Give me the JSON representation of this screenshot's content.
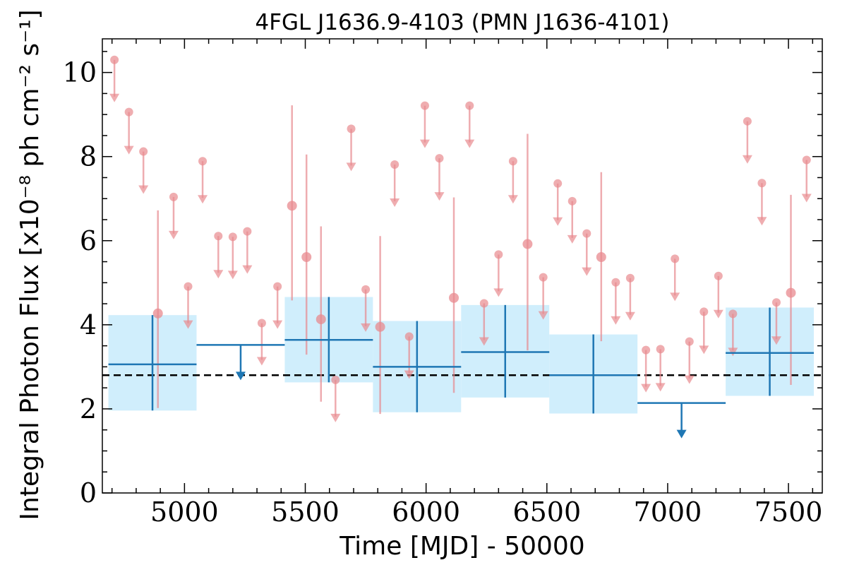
{
  "chart_data": {
    "type": "scatter",
    "title": "4FGL J1636.9-4103 (PMN J1636-4101)",
    "xlabel": "Time [MJD] - 50000",
    "ylabel": "Integral Photon Flux [x10⁻⁸ ph cm⁻² s⁻¹]",
    "xlim": [
      4660,
      7640
    ],
    "ylim": [
      0,
      10.8
    ],
    "xticks": [
      5000,
      5500,
      6000,
      6500,
      7000,
      7500
    ],
    "xtick_labels": [
      "5000",
      "5500",
      "6000",
      "6500",
      "7000",
      "7500"
    ],
    "yticks": [
      0,
      2,
      4,
      6,
      8,
      10
    ],
    "ytick_labels": [
      "0",
      "2",
      "4",
      "6",
      "8",
      "10"
    ],
    "grid": false,
    "mean_flux": 2.8,
    "colors": {
      "short_bins": "#e88a8f",
      "long_bins": "#1f77b4",
      "long_bin_band": "#d0eefc",
      "mean_line": "#000000"
    },
    "short_bin_detections": [
      {
        "x": 4890,
        "y": 4.27,
        "lo": 2.02,
        "hi": 6.72
      },
      {
        "x": 5445,
        "y": 6.83,
        "lo": 4.58,
        "hi": 9.22
      },
      {
        "x": 5505,
        "y": 5.61,
        "lo": 3.29,
        "hi": 8.05
      },
      {
        "x": 5565,
        "y": 4.13,
        "lo": 2.17,
        "hi": 6.34
      },
      {
        "x": 5810,
        "y": 3.95,
        "lo": 1.88,
        "hi": 6.11
      },
      {
        "x": 6115,
        "y": 4.64,
        "lo": 2.38,
        "hi": 7.03
      },
      {
        "x": 6420,
        "y": 5.92,
        "lo": 3.39,
        "hi": 8.54
      },
      {
        "x": 6725,
        "y": 5.61,
        "lo": 3.61,
        "hi": 7.63
      },
      {
        "x": 7510,
        "y": 4.76,
        "lo": 2.57,
        "hi": 7.09
      }
    ],
    "short_bin_upper_limits": [
      {
        "x": 4710,
        "y": 10.3
      },
      {
        "x": 4770,
        "y": 9.06
      },
      {
        "x": 4830,
        "y": 8.12
      },
      {
        "x": 4955,
        "y": 7.04
      },
      {
        "x": 5015,
        "y": 4.91
      },
      {
        "x": 5075,
        "y": 7.89
      },
      {
        "x": 5140,
        "y": 6.11
      },
      {
        "x": 5200,
        "y": 6.09
      },
      {
        "x": 5260,
        "y": 6.22
      },
      {
        "x": 5320,
        "y": 4.04
      },
      {
        "x": 5385,
        "y": 4.91
      },
      {
        "x": 5625,
        "y": 2.69
      },
      {
        "x": 5690,
        "y": 8.66
      },
      {
        "x": 5750,
        "y": 4.84
      },
      {
        "x": 5870,
        "y": 7.81
      },
      {
        "x": 5930,
        "y": 3.72
      },
      {
        "x": 5995,
        "y": 9.21
      },
      {
        "x": 6055,
        "y": 7.96
      },
      {
        "x": 6180,
        "y": 9.21
      },
      {
        "x": 6240,
        "y": 4.51
      },
      {
        "x": 6300,
        "y": 5.67
      },
      {
        "x": 6360,
        "y": 7.89
      },
      {
        "x": 6485,
        "y": 5.13
      },
      {
        "x": 6545,
        "y": 7.36
      },
      {
        "x": 6605,
        "y": 6.94
      },
      {
        "x": 6665,
        "y": 6.17
      },
      {
        "x": 6785,
        "y": 5.01
      },
      {
        "x": 6845,
        "y": 5.11
      },
      {
        "x": 6910,
        "y": 3.4
      },
      {
        "x": 6970,
        "y": 3.42
      },
      {
        "x": 7030,
        "y": 5.57
      },
      {
        "x": 7090,
        "y": 3.6
      },
      {
        "x": 7150,
        "y": 4.31
      },
      {
        "x": 7210,
        "y": 5.16
      },
      {
        "x": 7270,
        "y": 4.26
      },
      {
        "x": 7330,
        "y": 8.84
      },
      {
        "x": 7390,
        "y": 7.37
      },
      {
        "x": 7450,
        "y": 4.53
      },
      {
        "x": 7575,
        "y": 7.92
      }
    ],
    "long_bins": [
      {
        "x0": 4685,
        "x1": 5050,
        "y": 3.06,
        "lo": 1.96,
        "hi": 4.23,
        "upper_limit": false
      },
      {
        "x0": 5050,
        "x1": 5415,
        "y": 3.52,
        "upper_limit": true
      },
      {
        "x0": 5415,
        "x1": 5780,
        "y": 3.64,
        "lo": 2.63,
        "hi": 4.66,
        "upper_limit": false
      },
      {
        "x0": 5780,
        "x1": 6145,
        "y": 3.0,
        "lo": 1.92,
        "hi": 4.09,
        "upper_limit": false
      },
      {
        "x0": 6145,
        "x1": 6510,
        "y": 3.35,
        "lo": 2.27,
        "hi": 4.47,
        "upper_limit": false
      },
      {
        "x0": 6510,
        "x1": 6875,
        "y": 2.8,
        "lo": 1.89,
        "hi": 3.77,
        "upper_limit": false
      },
      {
        "x0": 6875,
        "x1": 7240,
        "y": 2.14,
        "upper_limit": true
      },
      {
        "x0": 7240,
        "x1": 7605,
        "y": 3.33,
        "lo": 2.31,
        "hi": 4.41,
        "upper_limit": false
      }
    ]
  }
}
